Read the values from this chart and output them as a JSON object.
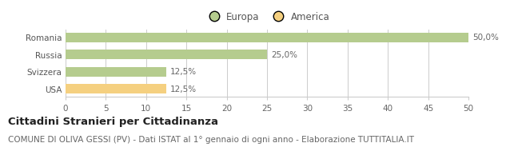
{
  "categories": [
    "Romania",
    "Russia",
    "Svizzera",
    "USA"
  ],
  "values": [
    50.0,
    25.0,
    12.5,
    12.5
  ],
  "colors": [
    "#b5cc8e",
    "#b5cc8e",
    "#b5cc8e",
    "#f5d080"
  ],
  "labels": [
    "50,0%",
    "25,0%",
    "12,5%",
    "12,5%"
  ],
  "xlim": [
    0,
    50
  ],
  "xticks": [
    0,
    5,
    10,
    15,
    20,
    25,
    30,
    35,
    40,
    45,
    50
  ],
  "legend_entries": [
    "Europa",
    "America"
  ],
  "legend_colors": [
    "#b5cc8e",
    "#f5d080"
  ],
  "title_bold": "Cittadini Stranieri per Cittadinanza",
  "subtitle": "COMUNE DI OLIVA GESSI (PV) - Dati ISTAT al 1° gennaio di ogni anno - Elaborazione TUTTITALIA.IT",
  "bar_height": 0.55,
  "background_color": "#ffffff",
  "grid_color": "#cccccc",
  "title_fontsize": 9.5,
  "subtitle_fontsize": 7.5,
  "label_fontsize": 7.5,
  "tick_fontsize": 7.5,
  "legend_fontsize": 8.5
}
